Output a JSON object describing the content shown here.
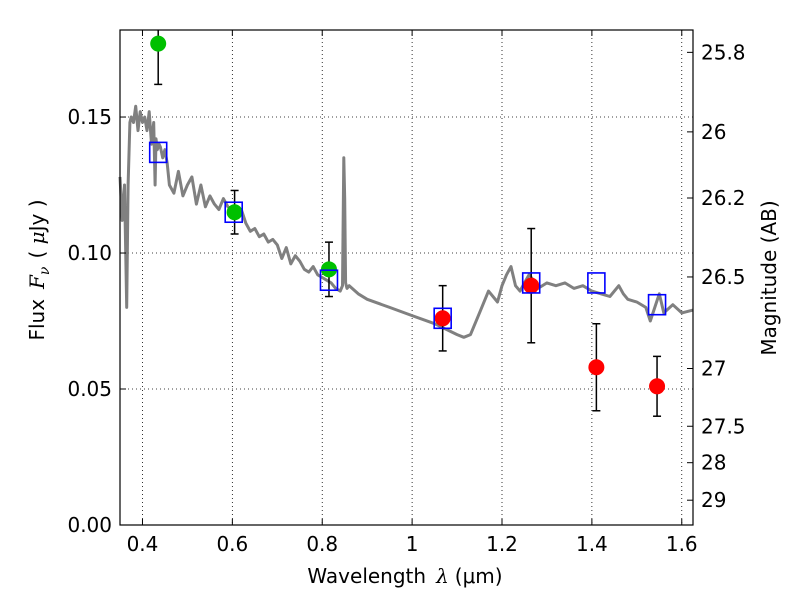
{
  "chart_data": {
    "type": "scatter",
    "xlabel": "Wavelength  λ (μm)",
    "ylabel": "Flux  F_ν  ( μJy )",
    "ylabel_parts": {
      "prefix": "Flux",
      "var": "F",
      "sub": "ν",
      "unit_open": "( ",
      "mu": "μ",
      "unit": "Jy )"
    },
    "xlabel_parts": {
      "prefix": "Wavelength",
      "var": "λ",
      "unit": "(μm)"
    },
    "y2label": "Magnitude (AB)",
    "xlim": [
      0.35,
      1.625
    ],
    "ylim": [
      0.0,
      0.182
    ],
    "grid": true,
    "x_ticks": [
      {
        "value": 0.4,
        "label": "0.4"
      },
      {
        "value": 0.6,
        "label": "0.6"
      },
      {
        "value": 0.8,
        "label": "0.8"
      },
      {
        "value": 1.0,
        "label": "1"
      },
      {
        "value": 1.2,
        "label": "1.2"
      },
      {
        "value": 1.4,
        "label": "1.4"
      },
      {
        "value": 1.6,
        "label": "1.6"
      }
    ],
    "y_ticks": [
      {
        "value": 0.0,
        "label": "0.00"
      },
      {
        "value": 0.05,
        "label": "0.05"
      },
      {
        "value": 0.1,
        "label": "0.10"
      },
      {
        "value": 0.15,
        "label": "0.15"
      }
    ],
    "y2_ticks": [
      {
        "value": 25.8,
        "label": "25.8"
      },
      {
        "value": 26.0,
        "label": "26"
      },
      {
        "value": 26.2,
        "label": "26.2"
      },
      {
        "value": 26.5,
        "label": "26.5"
      },
      {
        "value": 27.0,
        "label": "27"
      },
      {
        "value": 27.5,
        "label": "27.5"
      },
      {
        "value": 28.0,
        "label": "28"
      },
      {
        "value": 29.0,
        "label": "29"
      }
    ],
    "series": [
      {
        "kind": "line",
        "color": "#808080",
        "x": [
          0.35,
          0.355,
          0.36,
          0.365,
          0.368,
          0.372,
          0.375,
          0.38,
          0.385,
          0.39,
          0.395,
          0.4,
          0.405,
          0.41,
          0.415,
          0.42,
          0.425,
          0.428,
          0.43,
          0.433,
          0.437,
          0.44,
          0.445,
          0.45,
          0.455,
          0.46,
          0.47,
          0.48,
          0.49,
          0.5,
          0.51,
          0.52,
          0.53,
          0.54,
          0.55,
          0.56,
          0.57,
          0.58,
          0.59,
          0.6,
          0.61,
          0.62,
          0.63,
          0.64,
          0.65,
          0.66,
          0.67,
          0.68,
          0.69,
          0.7,
          0.71,
          0.72,
          0.73,
          0.74,
          0.75,
          0.76,
          0.77,
          0.78,
          0.79,
          0.8,
          0.81,
          0.82,
          0.83,
          0.84,
          0.845,
          0.848,
          0.85,
          0.852,
          0.855,
          0.86,
          0.88,
          0.9,
          0.95,
          1.0,
          1.05,
          1.1,
          1.115,
          1.13,
          1.15,
          1.17,
          1.19,
          1.2,
          1.21,
          1.22,
          1.23,
          1.24,
          1.25,
          1.26,
          1.27,
          1.28,
          1.3,
          1.32,
          1.34,
          1.36,
          1.38,
          1.4,
          1.42,
          1.44,
          1.46,
          1.47,
          1.48,
          1.5,
          1.52,
          1.53,
          1.54,
          1.55,
          1.56,
          1.58,
          1.6,
          1.625
        ],
        "y": [
          0.128,
          0.112,
          0.125,
          0.08,
          0.125,
          0.148,
          0.15,
          0.148,
          0.154,
          0.145,
          0.152,
          0.148,
          0.15,
          0.145,
          0.152,
          0.14,
          0.148,
          0.125,
          0.142,
          0.138,
          0.14,
          0.139,
          0.135,
          0.138,
          0.133,
          0.125,
          0.122,
          0.13,
          0.121,
          0.125,
          0.128,
          0.118,
          0.125,
          0.117,
          0.121,
          0.118,
          0.116,
          0.12,
          0.117,
          0.116,
          0.114,
          0.116,
          0.111,
          0.108,
          0.109,
          0.106,
          0.107,
          0.104,
          0.105,
          0.103,
          0.098,
          0.102,
          0.096,
          0.099,
          0.097,
          0.094,
          0.093,
          0.095,
          0.092,
          0.091,
          0.09,
          0.089,
          0.087,
          0.086,
          0.088,
          0.135,
          0.12,
          0.089,
          0.087,
          0.088,
          0.085,
          0.083,
          0.08,
          0.077,
          0.074,
          0.07,
          0.069,
          0.07,
          0.078,
          0.086,
          0.082,
          0.088,
          0.092,
          0.095,
          0.088,
          0.086,
          0.089,
          0.092,
          0.09,
          0.087,
          0.089,
          0.088,
          0.089,
          0.087,
          0.088,
          0.086,
          0.085,
          0.084,
          0.088,
          0.085,
          0.083,
          0.082,
          0.08,
          0.075,
          0.08,
          0.085,
          0.078,
          0.081,
          0.078,
          0.079
        ]
      },
      {
        "kind": "markers",
        "marker": "circle",
        "color": "#00c000",
        "x": [
          0.435,
          0.605,
          0.815
        ],
        "y": [
          0.177,
          0.115,
          0.094
        ],
        "yerr": [
          0.015,
          0.008,
          0.01
        ]
      },
      {
        "kind": "markers",
        "marker": "circle",
        "color": "#ff0000",
        "x": [
          1.068,
          1.265,
          1.41,
          1.545
        ],
        "y": [
          0.076,
          0.088,
          0.058,
          0.051
        ],
        "yerr": [
          0.012,
          0.021,
          0.016,
          0.011
        ]
      },
      {
        "kind": "markers",
        "marker": "open-square",
        "color": "#0000ff",
        "x": [
          0.435,
          0.603,
          0.815,
          1.068,
          1.265,
          1.41,
          1.545
        ],
        "y": [
          0.137,
          0.115,
          0.09,
          0.076,
          0.089,
          0.089,
          0.081
        ]
      }
    ]
  }
}
